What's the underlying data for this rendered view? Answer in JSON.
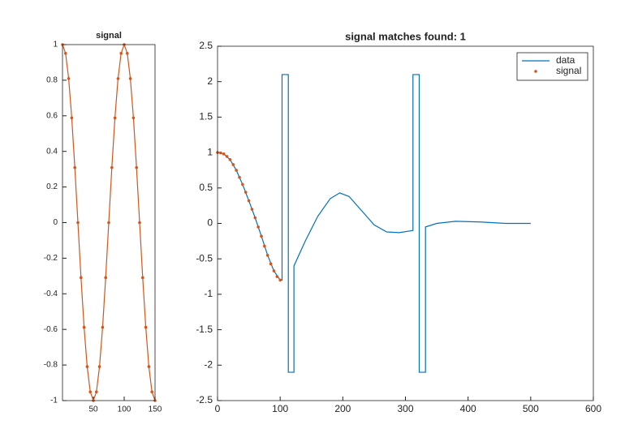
{
  "chart_data": [
    {
      "type": "line",
      "title": "signal",
      "xlim": [
        0,
        150
      ],
      "xticks": [
        50,
        100,
        150
      ],
      "ylim": [
        -1,
        1
      ],
      "yticks": [
        -1,
        -0.8,
        -0.6,
        -0.4,
        -0.2,
        0,
        0.2,
        0.4,
        0.6,
        0.8,
        1
      ],
      "series": [
        {
          "color": "#d95319",
          "line": true,
          "marker": true,
          "x": [
            0,
            5,
            10,
            15,
            20,
            25,
            30,
            35,
            40,
            45,
            50,
            55,
            60,
            65,
            70,
            75,
            80,
            85,
            90,
            95,
            100,
            105,
            110,
            115,
            120,
            125,
            130,
            135,
            140,
            145,
            150
          ],
          "values": [
            1,
            0.951,
            0.809,
            0.588,
            0.309,
            0,
            -0.309,
            -0.588,
            -0.809,
            -0.951,
            -1,
            -0.951,
            -0.809,
            -0.588,
            -0.309,
            0,
            0.309,
            0.588,
            0.809,
            0.951,
            1,
            0.951,
            0.809,
            0.588,
            0.309,
            0,
            -0.309,
            -0.588,
            -0.809,
            -0.951,
            -1
          ]
        }
      ]
    },
    {
      "type": "line",
      "title": "signal matches found: 1",
      "xlim": [
        0,
        600
      ],
      "xticks": [
        0,
        100,
        200,
        300,
        400,
        500,
        600
      ],
      "ylim": [
        -2.5,
        2.5
      ],
      "yticks": [
        -2.5,
        -2,
        -1.5,
        -1,
        -0.5,
        0,
        0.5,
        1,
        1.5,
        2,
        2.5
      ],
      "legend": "top-right",
      "series": [
        {
          "name": "data",
          "color": "#0072bd",
          "line": true,
          "marker": false,
          "x": [
            0,
            10,
            20,
            30,
            40,
            50,
            60,
            70,
            80,
            90,
            100,
            103,
            103,
            113,
            113,
            122,
            122,
            140,
            160,
            180,
            195,
            210,
            230,
            250,
            270,
            290,
            312,
            312,
            322,
            322,
            332,
            332,
            350,
            380,
            420,
            460,
            500
          ],
          "values": [
            1,
            0.98,
            0.9,
            0.75,
            0.55,
            0.32,
            0.08,
            -0.18,
            -0.45,
            -0.67,
            -0.8,
            -0.8,
            2.1,
            2.1,
            -2.1,
            -2.1,
            -0.6,
            -0.25,
            0.1,
            0.35,
            0.43,
            0.38,
            0.18,
            -0.02,
            -0.12,
            -0.13,
            -0.1,
            2.1,
            2.1,
            -2.1,
            -2.1,
            -0.05,
            0,
            0.03,
            0.02,
            0,
            0
          ]
        },
        {
          "name": "signal",
          "color": "#d95319",
          "line": false,
          "marker": true,
          "x": [
            0,
            5,
            10,
            15,
            20,
            25,
            30,
            35,
            40,
            45,
            50,
            55,
            60,
            65,
            70,
            75,
            80,
            85,
            90,
            95,
            100
          ],
          "values": [
            1,
            0.995,
            0.98,
            0.945,
            0.9,
            0.83,
            0.75,
            0.65,
            0.55,
            0.44,
            0.32,
            0.2,
            0.08,
            -0.05,
            -0.18,
            -0.32,
            -0.45,
            -0.57,
            -0.67,
            -0.75,
            -0.8
          ]
        }
      ]
    }
  ]
}
